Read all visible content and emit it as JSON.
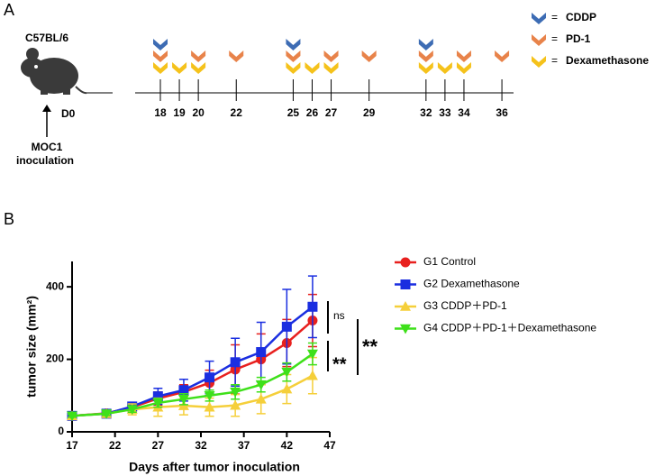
{
  "panel_a": {
    "label": "A",
    "strain": "C57BL/6",
    "day0": "D0",
    "inoculation": [
      "MOC1",
      "inoculation"
    ],
    "legend": [
      {
        "sign": "=",
        "name": "CDDP",
        "color": "#3d6cb4"
      },
      {
        "sign": "=",
        "name": "PD-1",
        "color": "#e8834a"
      },
      {
        "sign": "=",
        "name": "Dexamethasone",
        "color": "#f5c21b"
      }
    ],
    "days": [
      {
        "day": 18,
        "drugs": [
          "CDDP",
          "PD-1",
          "Dexamethasone"
        ]
      },
      {
        "day": 19,
        "drugs": [
          "Dexamethasone"
        ]
      },
      {
        "day": 20,
        "drugs": [
          "PD-1",
          "Dexamethasone"
        ]
      },
      {
        "day": 22,
        "drugs": [
          "PD-1"
        ]
      },
      {
        "day": 25,
        "drugs": [
          "CDDP",
          "PD-1",
          "Dexamethasone"
        ]
      },
      {
        "day": 26,
        "drugs": [
          "Dexamethasone"
        ]
      },
      {
        "day": 27,
        "drugs": [
          "PD-1",
          "Dexamethasone"
        ]
      },
      {
        "day": 29,
        "drugs": [
          "PD-1"
        ]
      },
      {
        "day": 32,
        "drugs": [
          "CDDP",
          "PD-1",
          "Dexamethasone"
        ]
      },
      {
        "day": 33,
        "drugs": [
          "Dexamethasone"
        ]
      },
      {
        "day": 34,
        "drugs": [
          "PD-1",
          "Dexamethasone"
        ]
      },
      {
        "day": 36,
        "drugs": [
          "PD-1"
        ]
      }
    ]
  },
  "panel_b_label": "B",
  "chart_data": {
    "type": "line",
    "x_label": "Days after  tumor inoculation",
    "y_label": "tumor size (mm²)",
    "x": [
      17,
      21,
      24,
      27,
      30,
      33,
      36,
      39,
      42,
      45
    ],
    "xlim": [
      17,
      47
    ],
    "xticks": [
      17,
      22,
      27,
      32,
      37,
      42,
      47
    ],
    "ylim": [
      0,
      470
    ],
    "yticks": [
      0,
      200,
      400
    ],
    "series": [
      {
        "name": "G1 Control",
        "color": "#e8201e",
        "marker": "circle",
        "values": [
          44,
          51,
          68,
          92,
          110,
          135,
          172,
          200,
          245,
          307
        ],
        "errors": [
          4,
          5,
          10,
          18,
          20,
          35,
          68,
          70,
          65,
          72
        ]
      },
      {
        "name": "G2 Dexamethasone",
        "color": "#1a2ee0",
        "marker": "square",
        "values": [
          44,
          50,
          70,
          98,
          115,
          150,
          192,
          220,
          290,
          345
        ],
        "errors": [
          4,
          5,
          8,
          22,
          30,
          45,
          66,
          82,
          103,
          85
        ]
      },
      {
        "name": "G3 CDDP＋PD-1",
        "color": "#f5cf3a",
        "marker": "triangle",
        "values": [
          44,
          50,
          62,
          68,
          72,
          68,
          73,
          90,
          118,
          155
        ],
        "errors": [
          4,
          5,
          15,
          25,
          25,
          25,
          30,
          40,
          40,
          50
        ]
      },
      {
        "name": "G4 CDDP＋PD-1＋Dexamethasone",
        "color": "#3ee01a",
        "marker": "triangle-down",
        "values": [
          44,
          50,
          62,
          80,
          90,
          100,
          110,
          130,
          165,
          215
        ],
        "errors": [
          4,
          5,
          8,
          12,
          15,
          15,
          20,
          20,
          25,
          30
        ]
      }
    ],
    "annotations": [
      "ns",
      "**",
      "**"
    ]
  }
}
